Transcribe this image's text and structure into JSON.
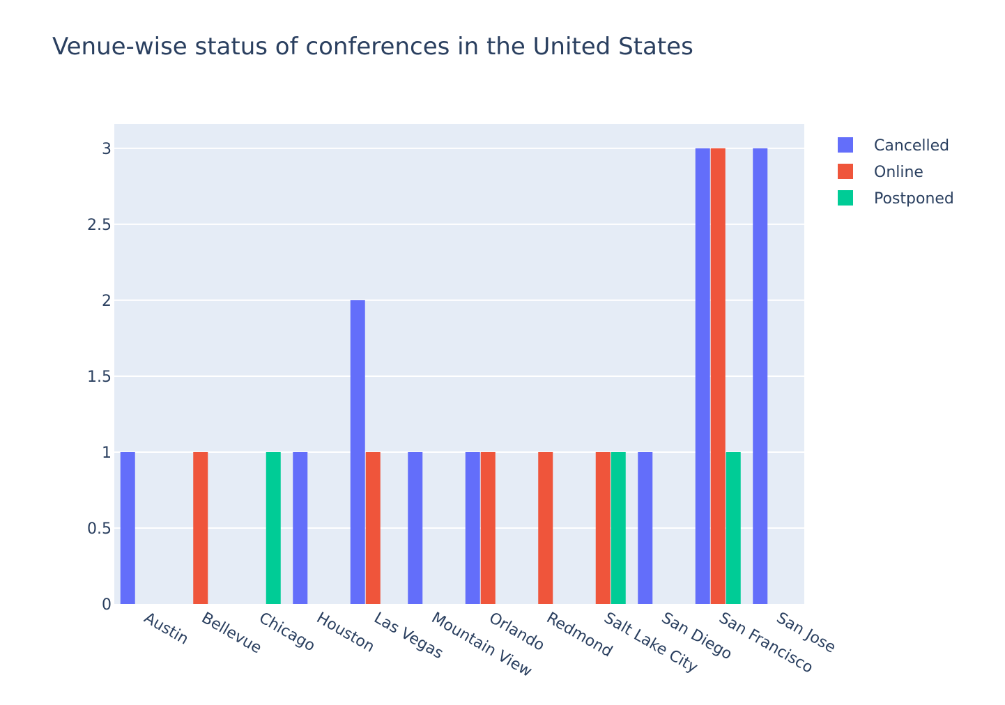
{
  "chart_data": {
    "type": "bar",
    "title": "Venue-wise status of conferences in the United States",
    "xlabel": "",
    "ylabel": "",
    "categories": [
      "Austin",
      "Bellevue",
      "Chicago",
      "Houston",
      "Las Vegas",
      "Mountain View",
      "Orlando",
      "Redmond",
      "Salt Lake City",
      "San Diego",
      "San Francisco",
      "San Jose"
    ],
    "series": [
      {
        "name": "Cancelled",
        "color": "#636efa",
        "values": [
          1,
          0,
          0,
          1,
          2,
          1,
          1,
          0,
          0,
          1,
          3,
          3
        ]
      },
      {
        "name": "Online",
        "color": "#ef553b",
        "values": [
          0,
          1,
          0,
          0,
          1,
          0,
          1,
          1,
          1,
          0,
          3,
          0
        ]
      },
      {
        "name": "Postponed",
        "color": "#00cc96",
        "values": [
          0,
          0,
          1,
          0,
          0,
          0,
          0,
          0,
          1,
          0,
          1,
          0
        ]
      }
    ],
    "ylim": [
      0,
      3.16
    ],
    "yticks": [
      "0",
      "0.5",
      "1",
      "1.5",
      "2",
      "2.5",
      "3"
    ],
    "grid": true,
    "legend_position": "top-right",
    "plot_background": "#e5ecf6",
    "text_color": "#2a3f5f"
  }
}
